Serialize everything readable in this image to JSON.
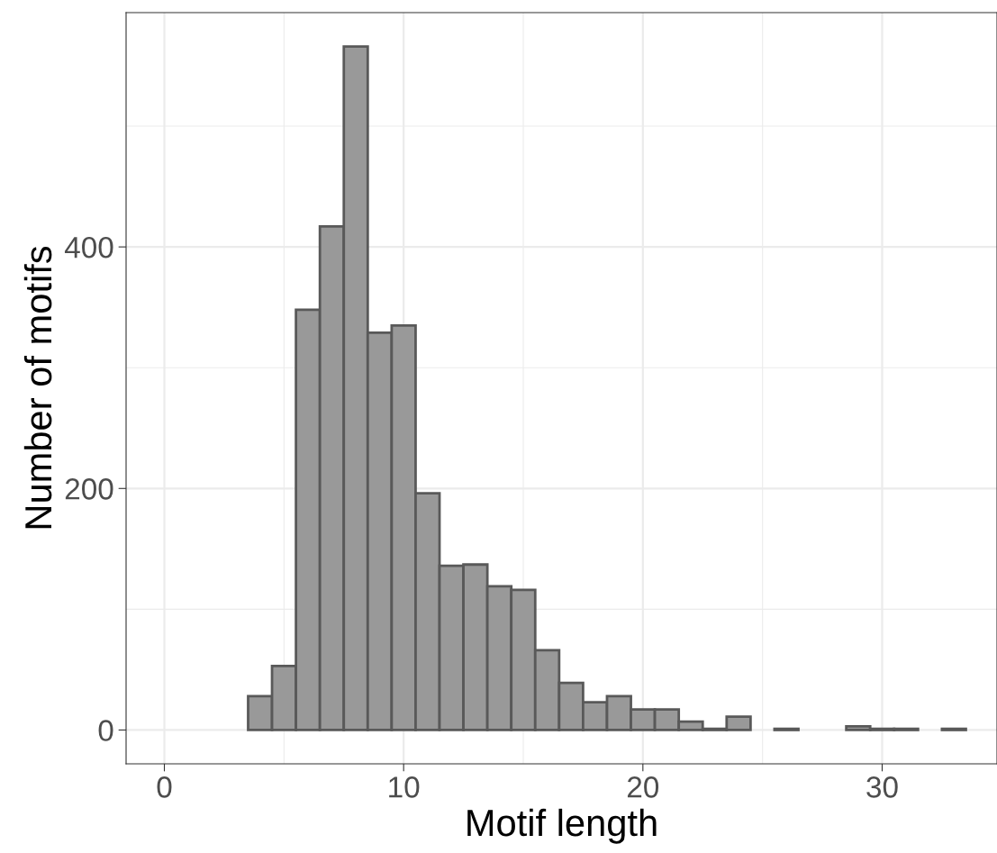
{
  "chart_data": {
    "type": "histogram",
    "xlabel": "Motif length",
    "ylabel": "Number of motifs",
    "color": "#999999",
    "bins": [
      3.5,
      4.5,
      5.5,
      6.5,
      7.5,
      8.5,
      9.5,
      10.5,
      11.5,
      12.5,
      13.5,
      14.5,
      15.5,
      16.5,
      17.5,
      18.5,
      19.5,
      20.5,
      21.5,
      22.5,
      23.5,
      24.5,
      25.5,
      26.5,
      27.5,
      28.5,
      29.5,
      30.5,
      31.5,
      32.5,
      33.5
    ],
    "values": [
      28,
      53,
      348,
      417,
      566,
      329,
      335,
      196,
      136,
      137,
      119,
      116,
      66,
      39,
      23,
      28,
      17,
      17,
      7,
      1,
      11,
      0,
      1,
      0,
      0,
      3,
      1,
      1,
      0,
      1
    ],
    "xlim": [
      -1.6,
      34.8
    ],
    "ylim": [
      -28,
      594
    ],
    "xticks": [
      0,
      10,
      20,
      30
    ],
    "yticks": [
      0,
      200,
      400
    ],
    "grid": true
  }
}
